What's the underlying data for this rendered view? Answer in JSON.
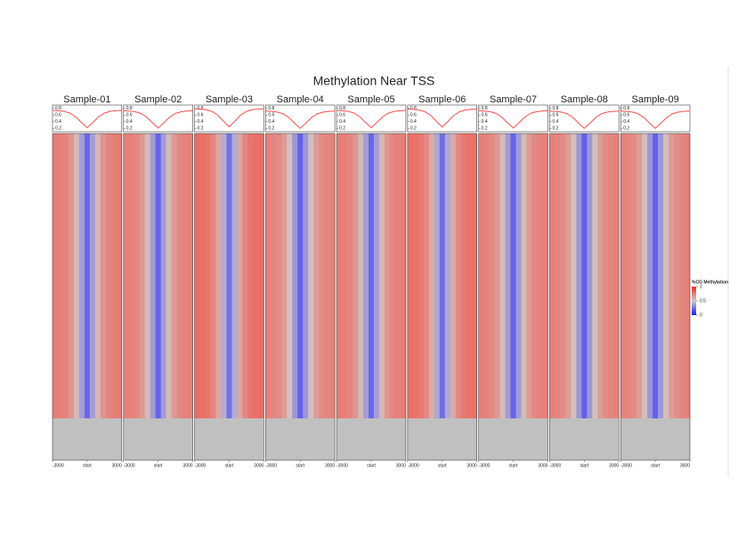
{
  "chart_data": {
    "type": "heatmap",
    "title": "Methylation Near TSS",
    "x": [
      -3000,
      -2500,
      -2000,
      -1500,
      -1000,
      -500,
      0,
      500,
      1000,
      1500,
      2000,
      2500,
      3000
    ],
    "xlim": [
      -3000,
      3000
    ],
    "xticks": [
      -3000,
      {
        "value": 0,
        "label": "start"
      },
      3000
    ],
    "ylim": [
      0.1,
      0.9
    ],
    "yticks": [
      0.2,
      0.4,
      0.6,
      0.8
    ],
    "line_color": "#ff4d4d",
    "colorscale": [
      "#1a1aff",
      "#d0c8c8",
      "#ff2a1a"
    ],
    "colorbar_title": "%CG Methylation",
    "colorbar_ticks": [
      1,
      0.5,
      0
    ],
    "panels": [
      {
        "name": "Sample-01",
        "values": [
          0.74,
          0.73,
          0.71,
          0.66,
          0.55,
          0.38,
          0.22,
          0.38,
          0.55,
          0.66,
          0.71,
          0.73,
          0.74
        ]
      },
      {
        "name": "Sample-02",
        "values": [
          0.73,
          0.72,
          0.7,
          0.65,
          0.54,
          0.37,
          0.21,
          0.37,
          0.54,
          0.65,
          0.7,
          0.72,
          0.73
        ]
      },
      {
        "name": "Sample-03",
        "values": [
          0.79,
          0.78,
          0.76,
          0.71,
          0.6,
          0.42,
          0.25,
          0.42,
          0.6,
          0.71,
          0.76,
          0.78,
          0.79
        ]
      },
      {
        "name": "Sample-04",
        "values": [
          0.72,
          0.71,
          0.69,
          0.64,
          0.53,
          0.36,
          0.2,
          0.36,
          0.53,
          0.64,
          0.69,
          0.71,
          0.72
        ]
      },
      {
        "name": "Sample-05",
        "values": [
          0.74,
          0.73,
          0.71,
          0.66,
          0.55,
          0.38,
          0.22,
          0.38,
          0.55,
          0.66,
          0.71,
          0.73,
          0.74
        ]
      },
      {
        "name": "Sample-06",
        "values": [
          0.78,
          0.77,
          0.75,
          0.7,
          0.59,
          0.41,
          0.24,
          0.41,
          0.59,
          0.7,
          0.75,
          0.77,
          0.78
        ]
      },
      {
        "name": "Sample-07",
        "values": [
          0.73,
          0.72,
          0.7,
          0.65,
          0.54,
          0.37,
          0.21,
          0.37,
          0.54,
          0.65,
          0.7,
          0.72,
          0.73
        ]
      },
      {
        "name": "Sample-08",
        "values": [
          0.72,
          0.71,
          0.69,
          0.64,
          0.53,
          0.36,
          0.2,
          0.36,
          0.53,
          0.64,
          0.69,
          0.71,
          0.72
        ]
      },
      {
        "name": "Sample-09",
        "values": [
          0.72,
          0.71,
          0.69,
          0.64,
          0.53,
          0.36,
          0.2,
          0.36,
          0.53,
          0.64,
          0.69,
          0.71,
          0.72
        ]
      }
    ]
  }
}
